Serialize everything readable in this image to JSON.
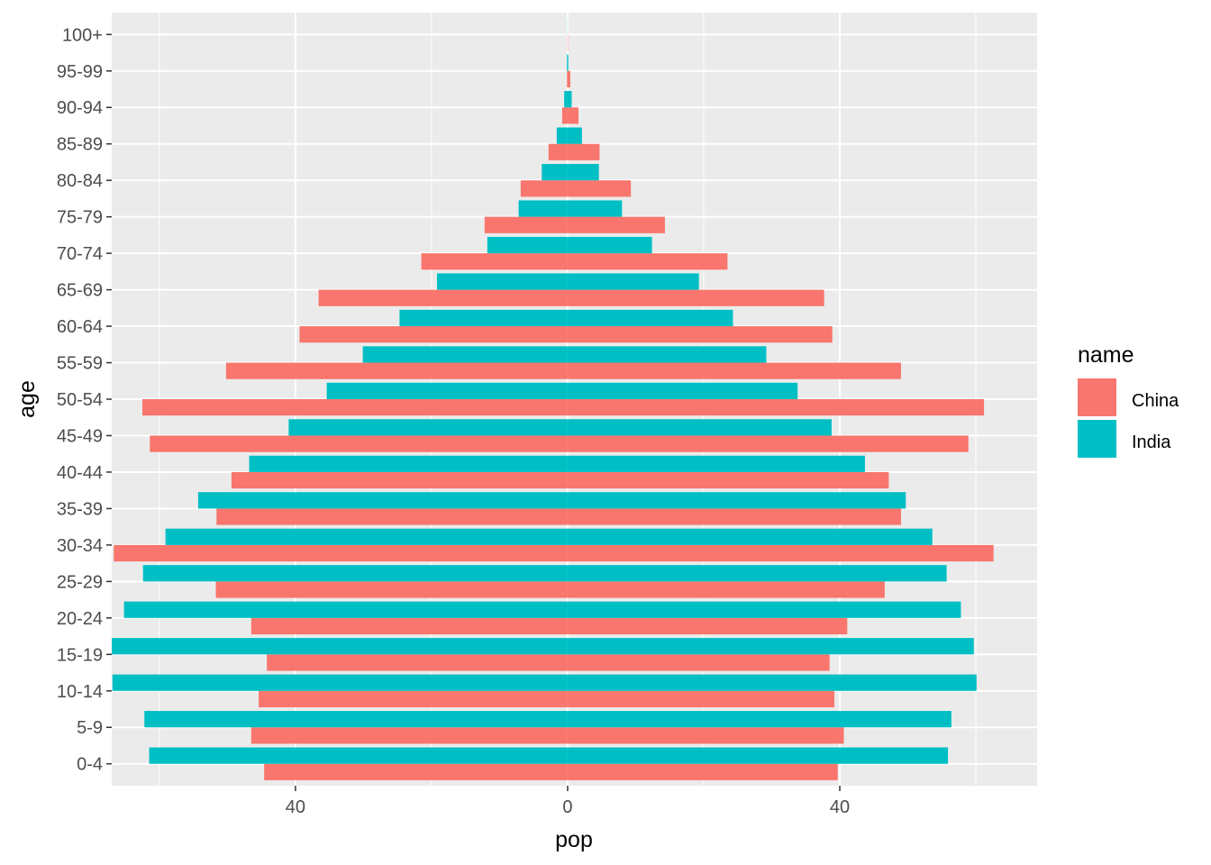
{
  "chart_data": {
    "type": "bar",
    "orientation": "horizontal",
    "style": "population-pyramid",
    "xlabel": "pop",
    "ylabel": "age",
    "xlim": [
      -67,
      69
    ],
    "x_ticks": [
      -40,
      0,
      40
    ],
    "x_tick_labels": [
      "40",
      "0",
      "40"
    ],
    "grid": true,
    "legend": {
      "title": "name",
      "position": "right"
    },
    "categories": [
      "0-4",
      "5-9",
      "10-14",
      "15-19",
      "20-24",
      "25-29",
      "30-34",
      "35-39",
      "40-44",
      "45-49",
      "50-54",
      "55-59",
      "60-64",
      "65-69",
      "70-74",
      "75-79",
      "80-84",
      "85-89",
      "90-94",
      "95-99",
      "100+"
    ],
    "series": [
      {
        "name": "China",
        "color": "#F8766D",
        "left": [
          -44.6,
          -46.5,
          -45.4,
          -44.2,
          -46.5,
          -51.7,
          -66.7,
          -51.6,
          -49.4,
          -61.4,
          -62.5,
          -50.2,
          -39.4,
          -36.6,
          -21.5,
          -12.2,
          -6.9,
          -2.8,
          -0.8,
          -0.1,
          -0.01
        ],
        "right": [
          39.7,
          40.6,
          39.2,
          38.5,
          41.1,
          46.6,
          62.6,
          49.0,
          47.2,
          58.9,
          61.2,
          49.0,
          38.9,
          37.7,
          23.5,
          14.3,
          9.3,
          4.7,
          1.6,
          0.4,
          0.05
        ]
      },
      {
        "name": "India",
        "color": "#00BFC4",
        "left": [
          -61.5,
          -62.2,
          -66.9,
          -67.0,
          -65.2,
          -62.4,
          -59.1,
          -54.3,
          -46.8,
          -41.0,
          -35.4,
          -30.1,
          -24.7,
          -19.2,
          -11.8,
          -7.2,
          -3.8,
          -1.6,
          -0.5,
          -0.1,
          -0.01
        ],
        "right": [
          55.9,
          56.4,
          60.1,
          59.7,
          57.8,
          55.7,
          53.6,
          49.7,
          43.7,
          38.8,
          33.8,
          29.2,
          24.3,
          19.3,
          12.4,
          8.0,
          4.6,
          2.1,
          0.6,
          0.1,
          0.01
        ]
      }
    ]
  }
}
